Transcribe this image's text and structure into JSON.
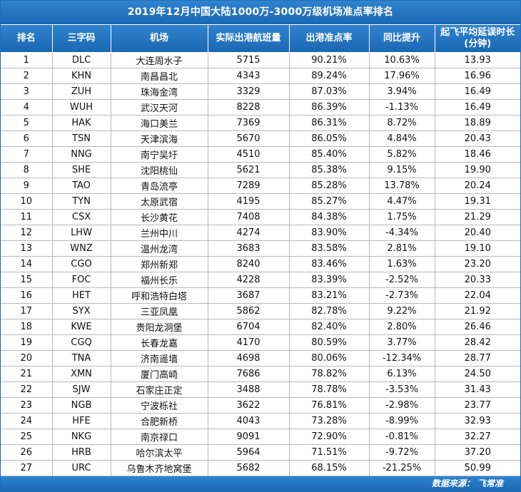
{
  "title": "2019年12月中国大陆1000万-3000万级机场准点率排名",
  "headers": {
    "rank": "排名",
    "code": "三字码",
    "airport": "机场",
    "flights": "实际出港航班量",
    "ontime": "出港准点率",
    "yoy": "同比提升",
    "delay_line1": "起飞平均延误时长",
    "delay_line2": "(分钟)"
  },
  "rows": [
    {
      "rank": "1",
      "code": "DLC",
      "airport": "大连周水子",
      "flights": "5715",
      "ontime": "90.21%",
      "yoy": "10.63%",
      "delay": "13.93"
    },
    {
      "rank": "2",
      "code": "KHN",
      "airport": "南昌昌北",
      "flights": "4343",
      "ontime": "89.24%",
      "yoy": "17.96%",
      "delay": "16.96"
    },
    {
      "rank": "3",
      "code": "ZUH",
      "airport": "珠海金湾",
      "flights": "3329",
      "ontime": "87.03%",
      "yoy": "3.94%",
      "delay": "16.49"
    },
    {
      "rank": "4",
      "code": "WUH",
      "airport": "武汉天河",
      "flights": "8228",
      "ontime": "86.39%",
      "yoy": "-1.13%",
      "delay": "16.49"
    },
    {
      "rank": "5",
      "code": "HAK",
      "airport": "海口美兰",
      "flights": "7369",
      "ontime": "86.31%",
      "yoy": "8.72%",
      "delay": "18.89"
    },
    {
      "rank": "6",
      "code": "TSN",
      "airport": "天津滨海",
      "flights": "5670",
      "ontime": "86.05%",
      "yoy": "4.84%",
      "delay": "20.43"
    },
    {
      "rank": "7",
      "code": "NNG",
      "airport": "南宁吴圩",
      "flights": "4510",
      "ontime": "85.40%",
      "yoy": "5.82%",
      "delay": "18.46"
    },
    {
      "rank": "8",
      "code": "SHE",
      "airport": "沈阳桃仙",
      "flights": "5621",
      "ontime": "85.38%",
      "yoy": "9.15%",
      "delay": "19.90"
    },
    {
      "rank": "9",
      "code": "TAO",
      "airport": "青岛流亭",
      "flights": "7289",
      "ontime": "85.28%",
      "yoy": "13.78%",
      "delay": "20.24"
    },
    {
      "rank": "10",
      "code": "TYN",
      "airport": "太原武宿",
      "flights": "4195",
      "ontime": "85.27%",
      "yoy": "4.47%",
      "delay": "19.31"
    },
    {
      "rank": "11",
      "code": "CSX",
      "airport": "长沙黄花",
      "flights": "7408",
      "ontime": "84.38%",
      "yoy": "1.75%",
      "delay": "21.29"
    },
    {
      "rank": "12",
      "code": "LHW",
      "airport": "兰州中川",
      "flights": "4274",
      "ontime": "83.90%",
      "yoy": "-4.34%",
      "delay": "20.40"
    },
    {
      "rank": "13",
      "code": "WNZ",
      "airport": "温州龙湾",
      "flights": "3683",
      "ontime": "83.58%",
      "yoy": "2.81%",
      "delay": "19.10"
    },
    {
      "rank": "14",
      "code": "CGO",
      "airport": "郑州新郑",
      "flights": "8240",
      "ontime": "83.46%",
      "yoy": "1.63%",
      "delay": "23.20"
    },
    {
      "rank": "15",
      "code": "FOC",
      "airport": "福州长乐",
      "flights": "4228",
      "ontime": "83.39%",
      "yoy": "-2.52%",
      "delay": "20.33"
    },
    {
      "rank": "16",
      "code": "HET",
      "airport": "呼和浩特白塔",
      "flights": "3687",
      "ontime": "83.21%",
      "yoy": "-2.73%",
      "delay": "22.04"
    },
    {
      "rank": "17",
      "code": "SYX",
      "airport": "三亚凤凰",
      "flights": "5862",
      "ontime": "82.78%",
      "yoy": "9.22%",
      "delay": "21.92"
    },
    {
      "rank": "18",
      "code": "KWE",
      "airport": "贵阳龙洞堡",
      "flights": "6704",
      "ontime": "82.40%",
      "yoy": "2.80%",
      "delay": "26.46"
    },
    {
      "rank": "19",
      "code": "CGQ",
      "airport": "长春龙嘉",
      "flights": "4170",
      "ontime": "80.59%",
      "yoy": "3.77%",
      "delay": "28.42"
    },
    {
      "rank": "20",
      "code": "TNA",
      "airport": "济南遥墙",
      "flights": "4698",
      "ontime": "80.06%",
      "yoy": "-12.34%",
      "delay": "28.77"
    },
    {
      "rank": "21",
      "code": "XMN",
      "airport": "厦门高崎",
      "flights": "7686",
      "ontime": "78.82%",
      "yoy": "6.13%",
      "delay": "24.50"
    },
    {
      "rank": "22",
      "code": "SJW",
      "airport": "石家庄正定",
      "flights": "3488",
      "ontime": "78.78%",
      "yoy": "-3.53%",
      "delay": "31.43"
    },
    {
      "rank": "23",
      "code": "NGB",
      "airport": "宁波栎社",
      "flights": "3622",
      "ontime": "76.81%",
      "yoy": "-2.98%",
      "delay": "23.77"
    },
    {
      "rank": "24",
      "code": "HFE",
      "airport": "合肥新桥",
      "flights": "4043",
      "ontime": "73.28%",
      "yoy": "-8.99%",
      "delay": "32.93"
    },
    {
      "rank": "25",
      "code": "NKG",
      "airport": "南京禄口",
      "flights": "9091",
      "ontime": "72.90%",
      "yoy": "-0.81%",
      "delay": "32.27"
    },
    {
      "rank": "26",
      "code": "HRB",
      "airport": "哈尔滨太平",
      "flights": "5964",
      "ontime": "71.51%",
      "yoy": "-9.72%",
      "delay": "37.20"
    },
    {
      "rank": "27",
      "code": "URC",
      "airport": "乌鲁木齐地窝堡",
      "flights": "5682",
      "ontime": "68.15%",
      "yoy": "-21.25%",
      "delay": "50.99"
    }
  ],
  "footer": "数据来源：  飞常准",
  "colors": {
    "header_bg": "#1f6fb8",
    "header_text": "#ffffff",
    "grid": "#b9b9b9"
  }
}
